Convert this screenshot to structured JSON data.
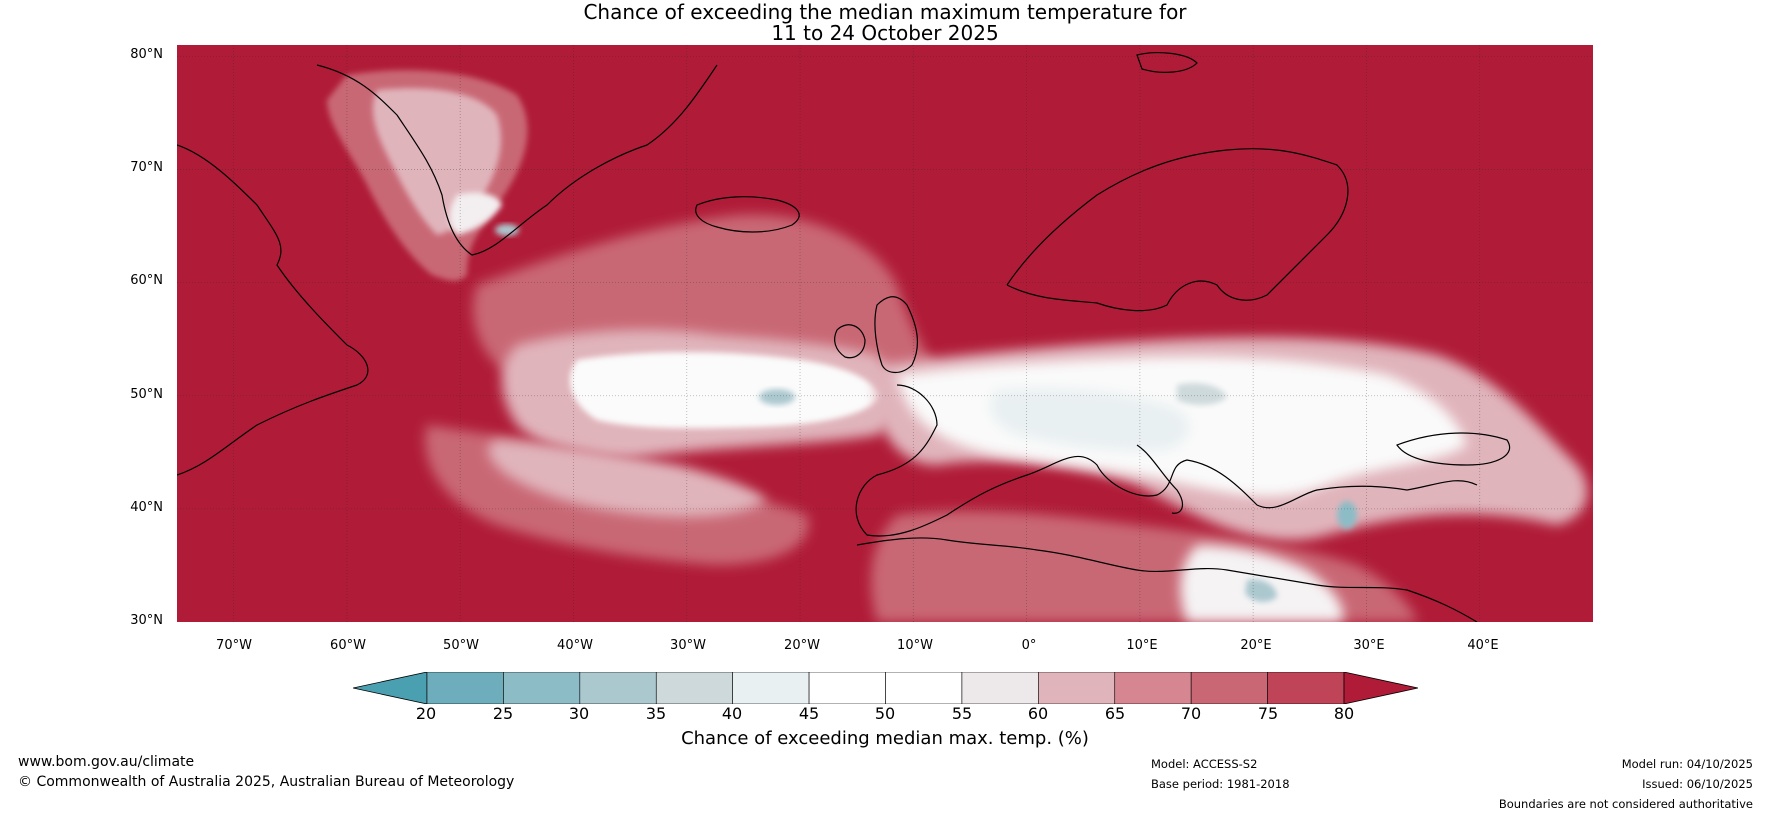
{
  "title": {
    "line1": "Chance of exceeding the median maximum temperature for",
    "line2": "11 to 24 October 2025"
  },
  "map": {
    "latitudes": [
      "80°N",
      "70°N",
      "60°N",
      "50°N",
      "40°N",
      "30°N"
    ],
    "longitudes": [
      "70°W",
      "60°W",
      "50°W",
      "40°W",
      "30°W",
      "20°W",
      "10°W",
      "0°",
      "10°E",
      "20°E",
      "30°E",
      "40°E"
    ],
    "lat_range": [
      30,
      81
    ],
    "lon_range": [
      -75,
      50
    ],
    "gridlines": true
  },
  "colorbar": {
    "ticks": [
      "20",
      "25",
      "30",
      "35",
      "40",
      "45",
      "50",
      "55",
      "60",
      "65",
      "70",
      "75",
      "80"
    ],
    "colors": [
      "#4aa0b0",
      "#6eaebc",
      "#8cbcc6",
      "#acc8cf",
      "#ced9db",
      "#e9f0f2",
      "#ffffff",
      "#ffffff",
      "#ede8ea",
      "#e0b4bb",
      "#d68690",
      "#c96874",
      "#bf4458",
      "#b01c38"
    ],
    "label": "Chance of exceeding median max. temp. (%)",
    "extend": "both"
  },
  "footer": {
    "website": "www.bom.gov.au/climate",
    "copyright": "© Commonwealth of Australia 2025, Australian Bureau of Meteorology",
    "model": "Model: ACCESS-S2",
    "base_period": "Base period: 1981-2018",
    "model_run": "Model run: 04/10/2025",
    "issued": "Issued: 06/10/2025",
    "disclaimer": "Boundaries are not considered authoritative"
  }
}
